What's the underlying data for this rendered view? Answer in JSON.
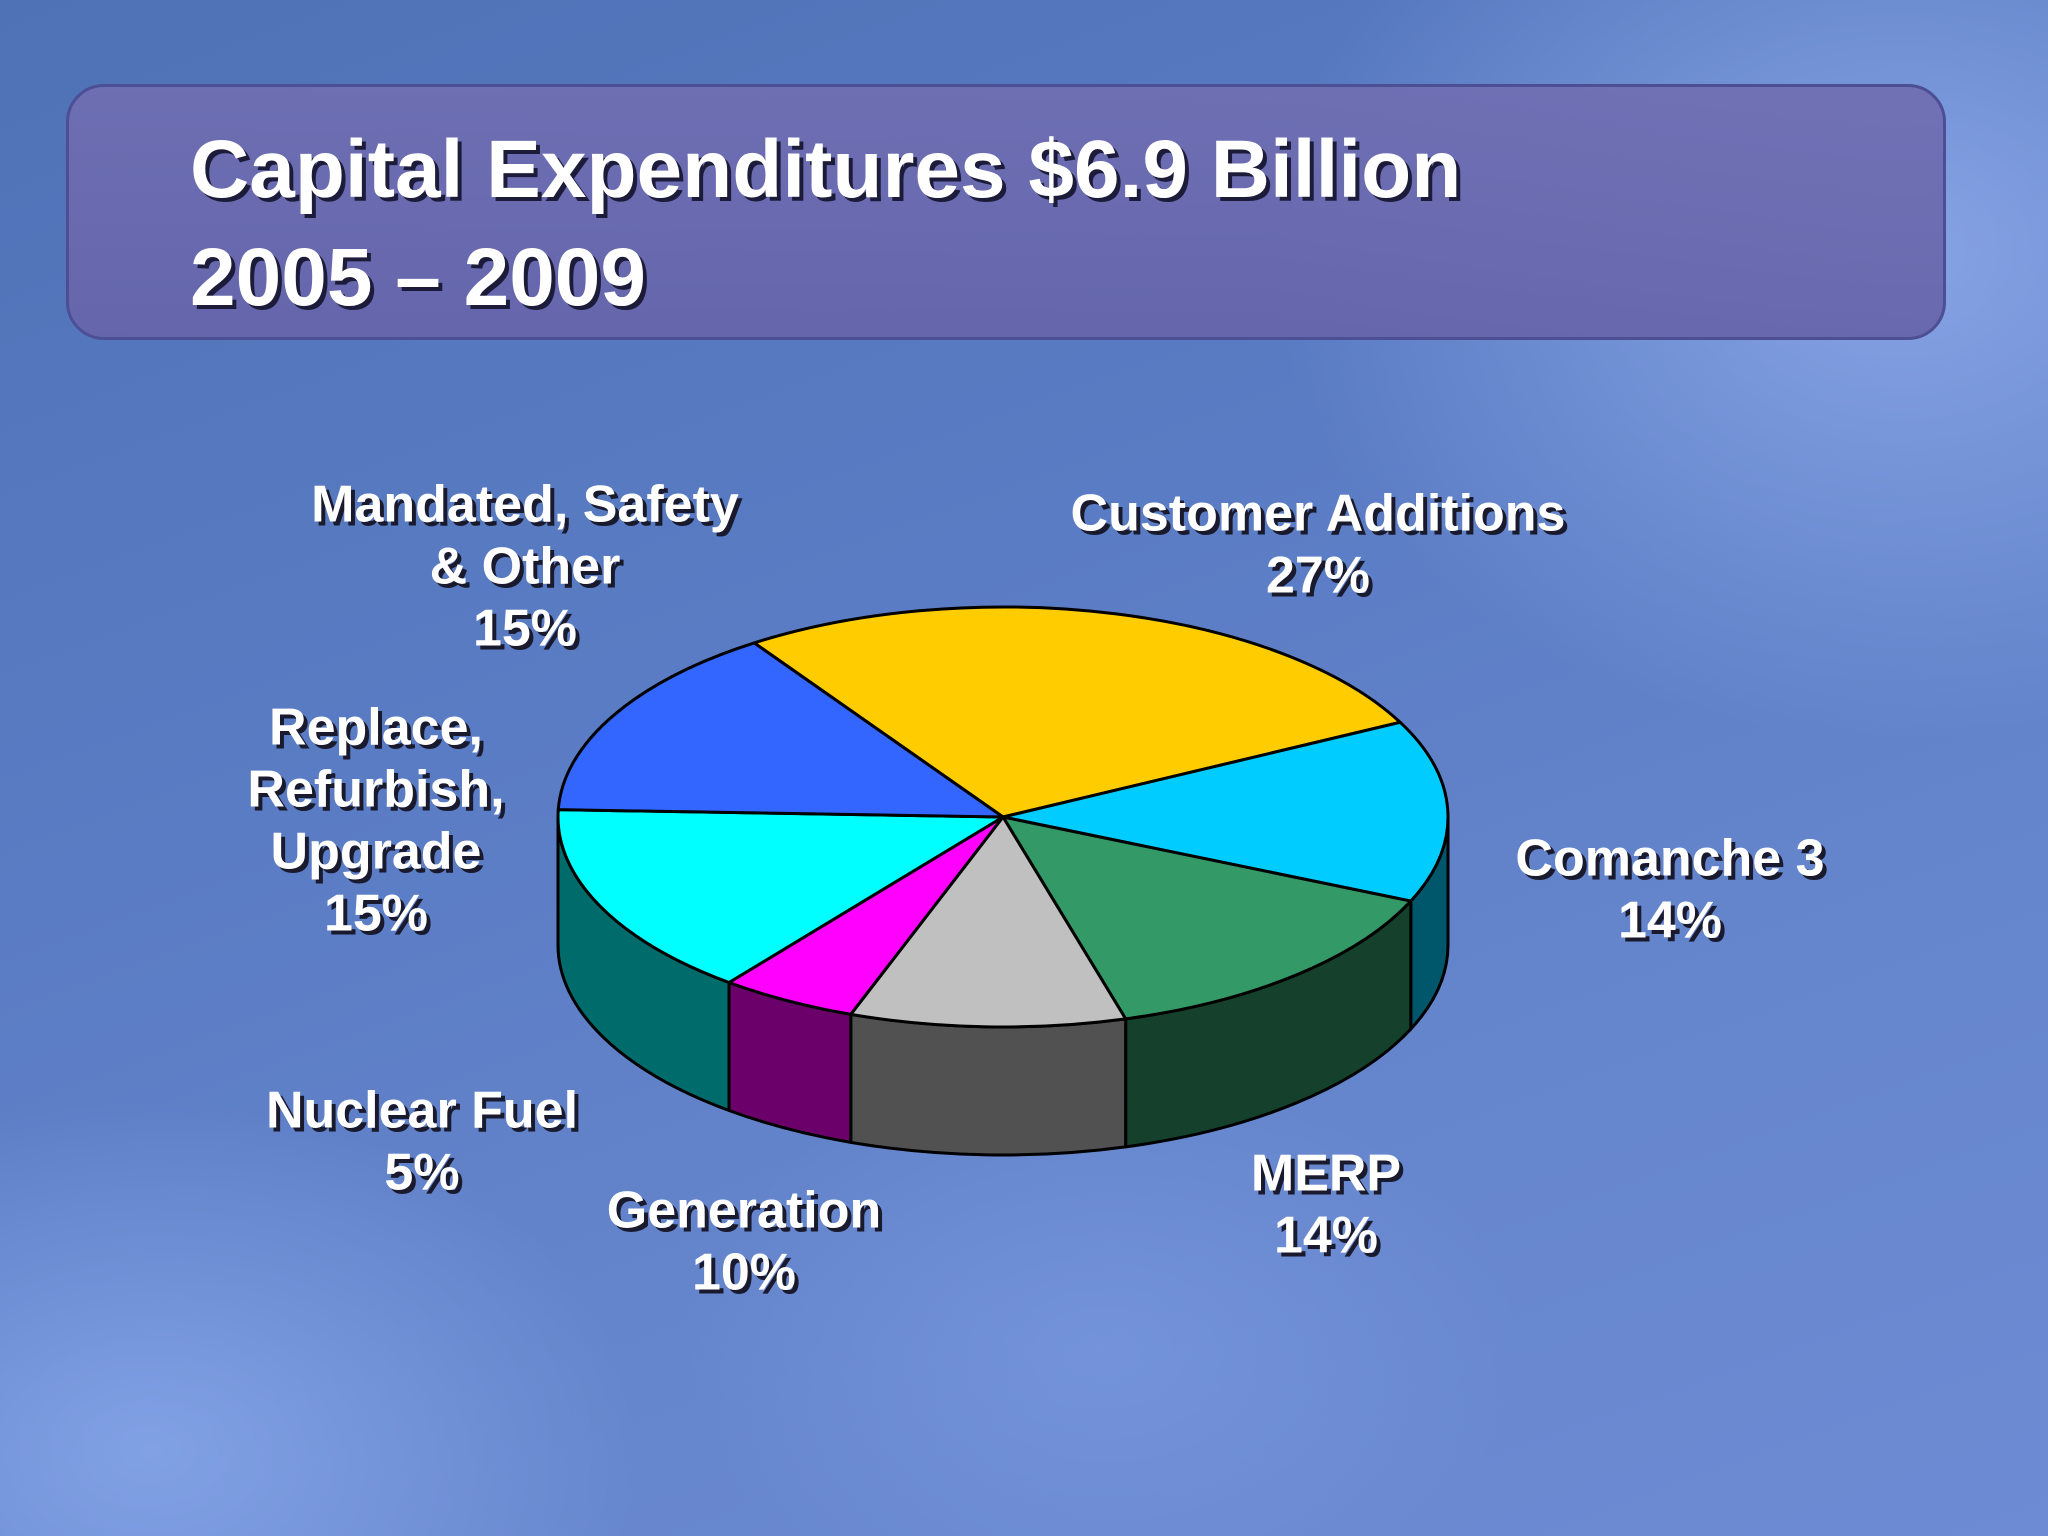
{
  "slide": {
    "title_line1": "Capital Expenditures $6.9 Billion",
    "title_line2": "2005 – 2009"
  },
  "chart_data": {
    "type": "pie",
    "style": "3d-exploded-perspective",
    "title": "Capital Expenditures $6.9 Billion 2005 – 2009",
    "slices": [
      {
        "name": "Customer Additions",
        "label_lines": [
          "Customer Additions"
        ],
        "percent_label": "27%",
        "value": 27,
        "color": "#ffcc00"
      },
      {
        "name": "Comanche 3",
        "label_lines": [
          "Comanche 3"
        ],
        "percent_label": "14%",
        "value": 14,
        "color": "#00ccff"
      },
      {
        "name": "MERP",
        "label_lines": [
          "MERP"
        ],
        "percent_label": "14%",
        "value": 14,
        "color": "#339966"
      },
      {
        "name": "Generation",
        "label_lines": [
          "Generation"
        ],
        "percent_label": "10%",
        "value": 10,
        "color": "#c0c0c0"
      },
      {
        "name": "Nuclear Fuel",
        "label_lines": [
          "Nuclear Fuel"
        ],
        "percent_label": "5%",
        "value": 5,
        "color": "#ff00ff"
      },
      {
        "name": "Replace, Refurbish, Upgrade",
        "label_lines": [
          "Replace,",
          "Refurbish,",
          "Upgrade"
        ],
        "percent_label": "15%",
        "value": 15,
        "color": "#00ffff"
      },
      {
        "name": "Mandated, Safety & Other",
        "label_lines": [
          "Mandated, Safety",
          "& Other"
        ],
        "percent_label": "15%",
        "value": 15,
        "color": "#3366ff"
      }
    ]
  }
}
